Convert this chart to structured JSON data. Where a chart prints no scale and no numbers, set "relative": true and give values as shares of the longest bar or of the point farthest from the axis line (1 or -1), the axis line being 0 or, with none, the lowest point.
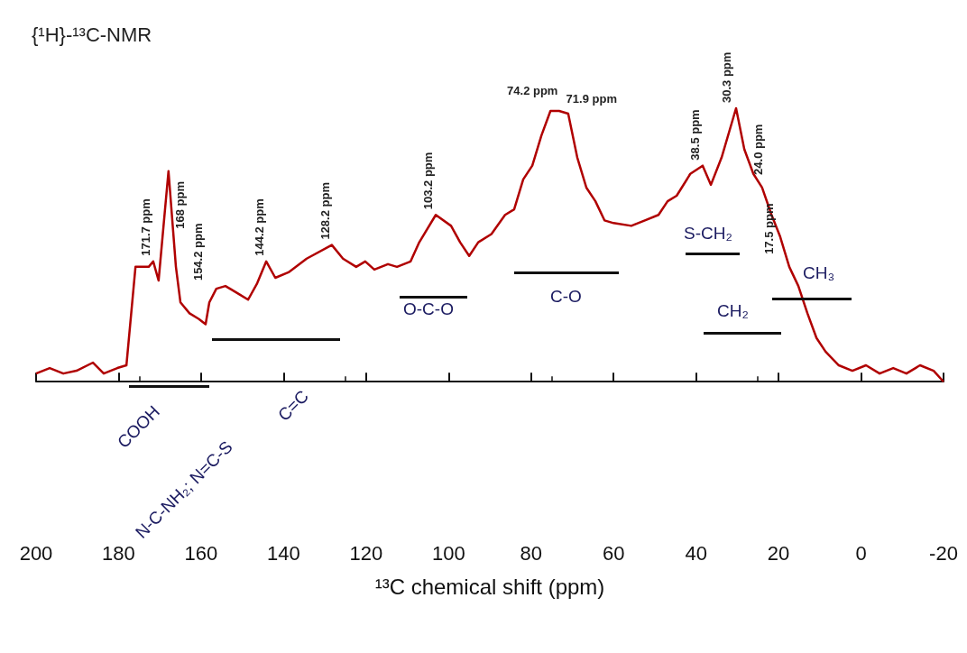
{
  "chart_data": {
    "type": "line",
    "title": "{¹H}-¹³C-NMR",
    "xlabel": "¹³C chemical shift (ppm)",
    "relative": true,
    "color": "#b00000",
    "marker": "none",
    "grid": false,
    "xlim": [
      200,
      -20
    ],
    "xticks": [
      200,
      180,
      160,
      140,
      120,
      100,
      80,
      60,
      40,
      20,
      0,
      -20
    ],
    "x": [
      200,
      196.7,
      193.4,
      190.2,
      186.2,
      183.6,
      180.3,
      178.1,
      175.9,
      172.7,
      171.6,
      170.3,
      167.9,
      166.1,
      165.0,
      162.8,
      160.6,
      158.9,
      158.0,
      156.3,
      154.1,
      150.8,
      148.6,
      146.4,
      144.2,
      142.0,
      138.8,
      134.4,
      128.3,
      125.6,
      122.4,
      120.2,
      118.0,
      114.7,
      112.5,
      109.2,
      107.1,
      103.1,
      99.4,
      97.2,
      95.0,
      92.8,
      89.6,
      86.3,
      84.1,
      81.9,
      79.7,
      77.5,
      75.3,
      73.2,
      71.0,
      68.8,
      66.6,
      64.4,
      62.2,
      60.0,
      55.7,
      52.4,
      49.1,
      46.9,
      44.7,
      41.4,
      38.4,
      36.4,
      33.8,
      30.3,
      28.3,
      26.1,
      24.0,
      21.7,
      19.6,
      17.4,
      15.2,
      13.0,
      10.8,
      8.6,
      5.4,
      2.1,
      -1.2,
      -4.5,
      -7.8,
      -11.0,
      -14.3,
      -17.6,
      -20
    ],
    "values": [
      0.03,
      0.05,
      0.03,
      0.04,
      0.07,
      0.03,
      0.05,
      0.06,
      0.42,
      0.42,
      0.44,
      0.37,
      0.77,
      0.42,
      0.29,
      0.25,
      0.23,
      0.21,
      0.29,
      0.34,
      0.35,
      0.32,
      0.3,
      0.36,
      0.44,
      0.38,
      0.4,
      0.45,
      0.5,
      0.45,
      0.42,
      0.44,
      0.41,
      0.43,
      0.42,
      0.44,
      0.51,
      0.61,
      0.57,
      0.51,
      0.46,
      0.51,
      0.54,
      0.61,
      0.63,
      0.74,
      0.79,
      0.9,
      0.99,
      0.99,
      0.98,
      0.82,
      0.71,
      0.66,
      0.59,
      0.58,
      0.57,
      0.59,
      0.61,
      0.66,
      0.68,
      0.76,
      0.79,
      0.72,
      0.82,
      1.0,
      0.85,
      0.76,
      0.71,
      0.61,
      0.53,
      0.42,
      0.35,
      0.25,
      0.16,
      0.11,
      0.06,
      0.04,
      0.06,
      0.03,
      0.05,
      0.03,
      0.06,
      0.04,
      0
    ],
    "annotations": [
      {
        "text": "171.7 ppm",
        "x": 171.7,
        "y": 0.44
      },
      {
        "text": "168 ppm",
        "x": 168,
        "y": 0.77
      },
      {
        "text": "154.2 ppm",
        "x": 154.2,
        "y": 0.35
      },
      {
        "text": "144.2 ppm",
        "x": 144.2,
        "y": 0.44
      },
      {
        "text": "128.2 ppm",
        "x": 128.2,
        "y": 0.5
      },
      {
        "text": "103.2 ppm",
        "x": 103.2,
        "y": 0.61
      },
      {
        "text": "74.2 ppm",
        "x": 74.2,
        "y": 0.99
      },
      {
        "text": "71.9 ppm",
        "x": 71.9,
        "y": 0.98
      },
      {
        "text": "38.5 ppm",
        "x": 38.5,
        "y": 0.79
      },
      {
        "text": "30.3 ppm",
        "x": 30.3,
        "y": 1.0
      },
      {
        "text": "24.0 ppm",
        "x": 24.0,
        "y": 0.71
      },
      {
        "text": "17.5 ppm",
        "x": 17.5,
        "y": 0.42
      },
      "COOH",
      "N-C-NH₂; N=C-S",
      "C=C",
      "O-C-O",
      "C-O",
      "S-CH₂",
      "CH₃",
      "CH₂"
    ]
  }
}
